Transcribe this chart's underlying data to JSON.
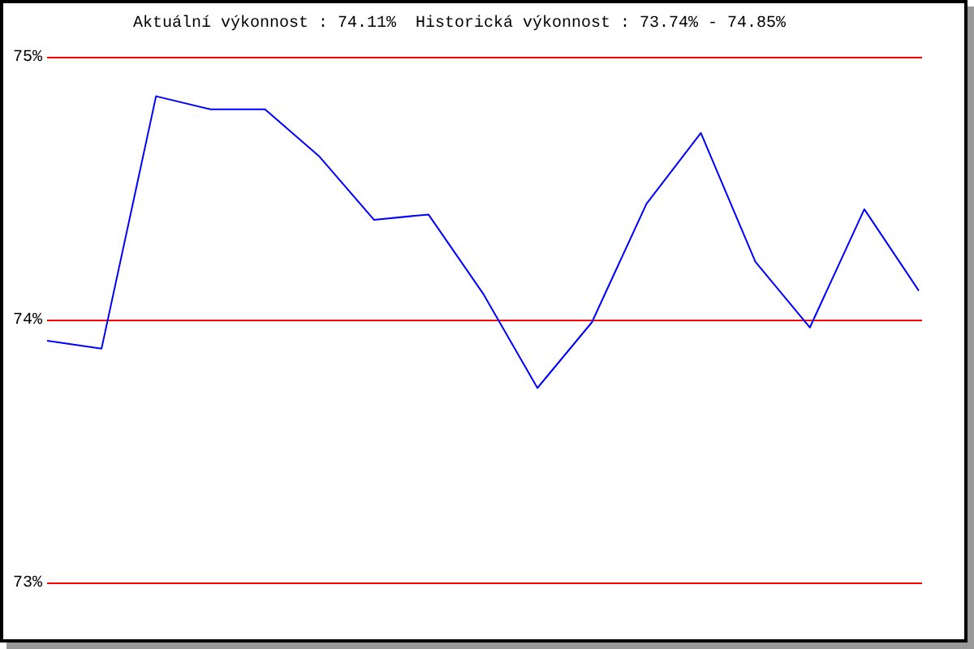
{
  "chart_data": {
    "type": "line",
    "title": "Aktuální výkonnost : 74.11%  Historická výkonnost : 73.74% - 74.85%",
    "categories": [
      null,
      null,
      null,
      null,
      null,
      null,
      null,
      null,
      null,
      null,
      null,
      null,
      null,
      null,
      null,
      null,
      null
    ],
    "series": [
      {
        "color": "#0000ff",
        "values": [
          73.92,
          73.89,
          74.85,
          74.8,
          74.8,
          74.62,
          74.38,
          74.4,
          74.1,
          73.74,
          73.99,
          74.44,
          74.71,
          74.22,
          73.97,
          74.42,
          74.11
        ]
      }
    ],
    "ylim": [
      73,
      75
    ],
    "yticks": [
      {
        "value": 73,
        "label": "73%"
      },
      {
        "value": 74,
        "label": "74%"
      },
      {
        "value": 75,
        "label": "75%"
      }
    ],
    "ref_lines": [
      {
        "axis": "y",
        "value": 75,
        "color": "#ff0000"
      },
      {
        "axis": "y",
        "value": 74,
        "color": "#ff0000"
      },
      {
        "axis": "y",
        "value": 73,
        "color": "#ff0000"
      }
    ],
    "marker": "none"
  }
}
